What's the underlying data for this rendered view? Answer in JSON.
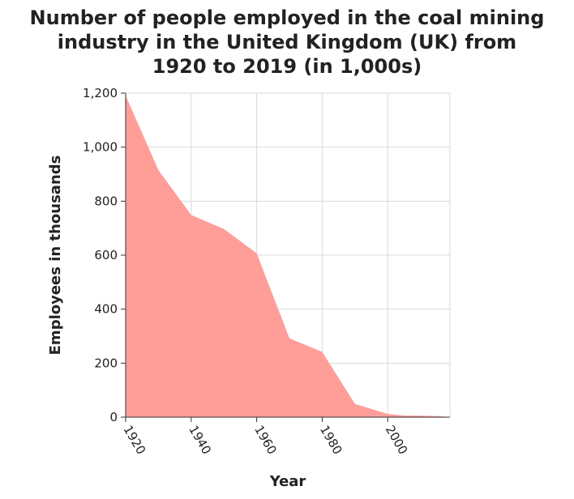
{
  "chart_data": {
    "type": "area",
    "title_lines": [
      "Number of people employed in the coal mining",
      "industry in the United Kingdom (UK) from",
      "1920 to 2019 (in 1,000s)"
    ],
    "xlabel": "Year",
    "ylabel": "Employees in thousands",
    "xlim": [
      1920,
      2019
    ],
    "ylim": [
      0,
      1200
    ],
    "x_ticks": [
      1920,
      1940,
      1960,
      1980,
      2000
    ],
    "x_tick_labels": [
      "1920",
      "1940",
      "1960",
      "1980",
      "2000"
    ],
    "y_ticks": [
      0,
      200,
      400,
      600,
      800,
      1000,
      1200
    ],
    "y_tick_labels": [
      "0",
      "200",
      "400",
      "600",
      "800",
      "1,000",
      "1,200"
    ],
    "grid": true,
    "fill_color": "#ff9e99",
    "x": [
      1920,
      1930,
      1940,
      1950,
      1960,
      1970,
      1980,
      1990,
      2000,
      2005,
      2010,
      2015,
      2019
    ],
    "values": [
      1191,
      915,
      749,
      697,
      607,
      292,
      242,
      49,
      12,
      6,
      6,
      4,
      1
    ]
  }
}
